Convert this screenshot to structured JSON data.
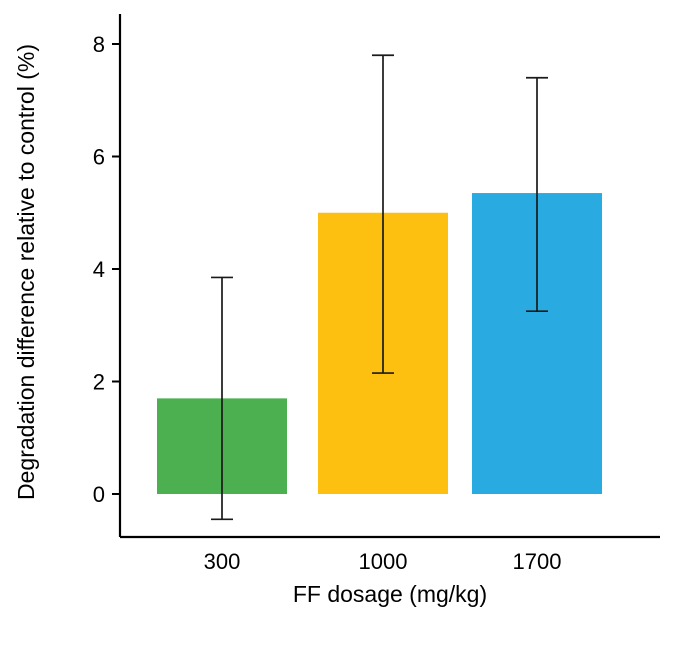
{
  "chart_data": {
    "type": "bar",
    "title": "",
    "xlabel": "FF dosage (mg/kg)",
    "ylabel": "Degradation difference relative to control (%)",
    "categories": [
      "300",
      "1000",
      "1700"
    ],
    "values": [
      1.7,
      5.0,
      5.35
    ],
    "error_low": [
      -0.45,
      2.15,
      3.25
    ],
    "error_high": [
      3.85,
      7.8,
      7.4
    ],
    "bar_colors": [
      "#4cb050",
      "#fdc010",
      "#29abe2"
    ],
    "error_bar_color": "#1a1a1a",
    "axis_color": "#000000",
    "yticks": [
      "0",
      "2",
      "4",
      "6",
      "8"
    ],
    "ylim": [
      -0.8,
      8.5
    ],
    "grid": false,
    "legend": false
  }
}
